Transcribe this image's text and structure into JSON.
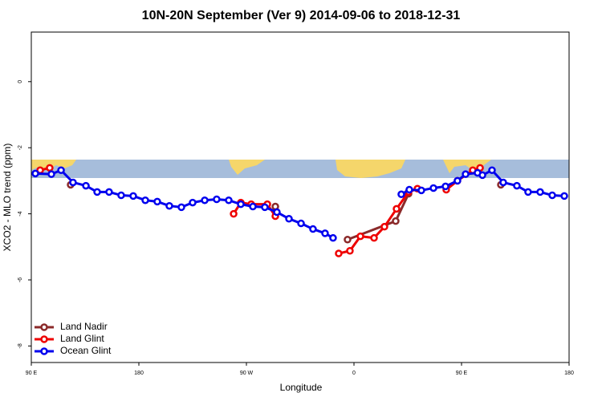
{
  "chart_data": {
    "type": "line",
    "title": "10N-20N September (Ver 9)   2014-09-06 to 2018-12-31",
    "x_label": "Longitude",
    "y_label": "XCO2 - MLO trend (ppm)",
    "xlim": [
      90,
      540
    ],
    "xticks": [
      {
        "value": 90,
        "label": "90 E"
      },
      {
        "value": 180,
        "label": "180"
      },
      {
        "value": 270,
        "label": "90 W"
      },
      {
        "value": 360,
        "label": "0"
      },
      {
        "value": 450,
        "label": "90 E"
      },
      {
        "value": 540,
        "label": "180"
      }
    ],
    "ylim": [
      -8.5,
      1.5
    ],
    "yticks": [
      0,
      -2,
      -4,
      -6,
      -8
    ],
    "legend": "bottom-left",
    "series": [
      {
        "name": "Land Nadir",
        "color": "#8b2a2a",
        "x": [
          122.9,
          null,
          294.2,
          null,
          354.6,
          394.9,
          405.7,
          null,
          482.9
        ],
        "values": [
          -3.12,
          null,
          -3.78,
          null,
          -4.78,
          -4.22,
          -3.39,
          null,
          -3.12
        ]
      },
      {
        "name": "Land Glint",
        "color": "#ee0000",
        "x": [
          97.4,
          105.4,
          null,
          259.3,
          265.3,
          274.0,
          287.5,
          294.2,
          null,
          347.2,
          356.6,
          365.4,
          376.8,
          385.5,
          395.6,
          405.7,
          413.1,
          null,
          437.2,
          446.6,
          459.4,
          465.5
        ],
        "values": [
          -2.68,
          -2.61,
          null,
          -4.0,
          -3.66,
          -3.71,
          -3.71,
          -4.07,
          null,
          -5.2,
          -5.12,
          -4.68,
          -4.73,
          -4.39,
          -3.85,
          -3.34,
          -3.24,
          null,
          -3.27,
          -3.0,
          -2.68,
          -2.61
        ]
      },
      {
        "name": "Ocean Glint",
        "color": "#0000ee",
        "x": [
          93.4,
          106.8,
          114.9,
          124.9,
          135.7,
          145.1,
          155.1,
          165.2,
          175.3,
          185.4,
          195.4,
          205.5,
          215.6,
          225.0,
          235.1,
          245.1,
          255.2,
          265.3,
          275.4,
          285.4,
          295.5,
          305.6,
          315.7,
          325.7,
          335.8,
          342.5,
          null,
          399.6,
          406.3,
          416.4,
          426.5,
          436.6,
          446.6,
          453.4,
          463.4,
          467.5,
          475.5,
          484.9,
          496.3,
          505.7,
          515.8,
          525.9,
          536.0
        ],
        "values": [
          -2.78,
          -2.8,
          -2.68,
          -3.05,
          -3.15,
          -3.34,
          -3.34,
          -3.44,
          -3.46,
          -3.59,
          -3.63,
          -3.76,
          -3.8,
          -3.66,
          -3.59,
          -3.56,
          -3.59,
          -3.71,
          -3.78,
          -3.8,
          -3.95,
          -4.15,
          -4.29,
          -4.46,
          -4.59,
          -4.73,
          null,
          -3.41,
          -3.27,
          -3.29,
          -3.22,
          -3.17,
          -3.0,
          -2.8,
          -2.76,
          -2.83,
          -2.68,
          -3.05,
          -3.15,
          -3.34,
          -3.34,
          -3.44,
          -3.46
        ]
      }
    ]
  }
}
